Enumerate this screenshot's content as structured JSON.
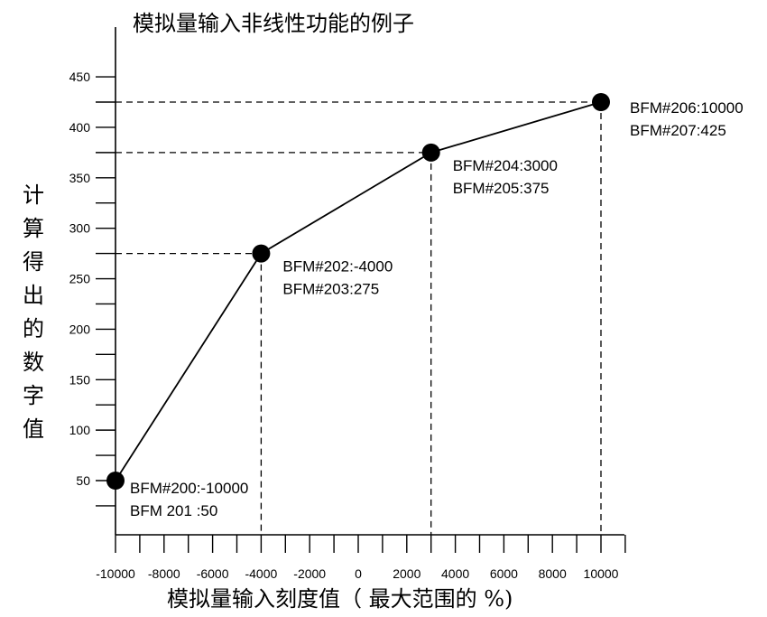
{
  "chart_data": {
    "type": "line",
    "title": "模拟量输入非线性功能的例子",
    "xlabel": "模拟量输入刻度值（ 最大范围的 %)",
    "ylabel": "计算得出的数字值",
    "xlim": [
      -10000,
      11000
    ],
    "ylim": [
      30,
      470
    ],
    "x_ticks": [
      -10000,
      -8000,
      -6000,
      -4000,
      -2000,
      0,
      2000,
      4000,
      6000,
      8000,
      10000
    ],
    "y_ticks": [
      50,
      100,
      150,
      200,
      250,
      300,
      350,
      400,
      450
    ],
    "grid": false,
    "series": [
      {
        "x": [
          -10000,
          -4000,
          3000,
          10000
        ],
        "y": [
          50,
          275,
          375,
          425
        ]
      }
    ],
    "annotations": [
      {
        "x": -10000,
        "y": 50,
        "lines": [
          "BFM#200:-10000",
          "BFM 201 :50"
        ]
      },
      {
        "x": -4000,
        "y": 275,
        "lines": [
          "BFM#202:-4000",
          "BFM#203:275"
        ]
      },
      {
        "x": 3000,
        "y": 375,
        "lines": [
          "BFM#204:3000",
          "BFM#205:375"
        ]
      },
      {
        "x": 10000,
        "y": 425,
        "lines": [
          "BFM#206:10000",
          "BFM#207:425"
        ]
      }
    ]
  }
}
